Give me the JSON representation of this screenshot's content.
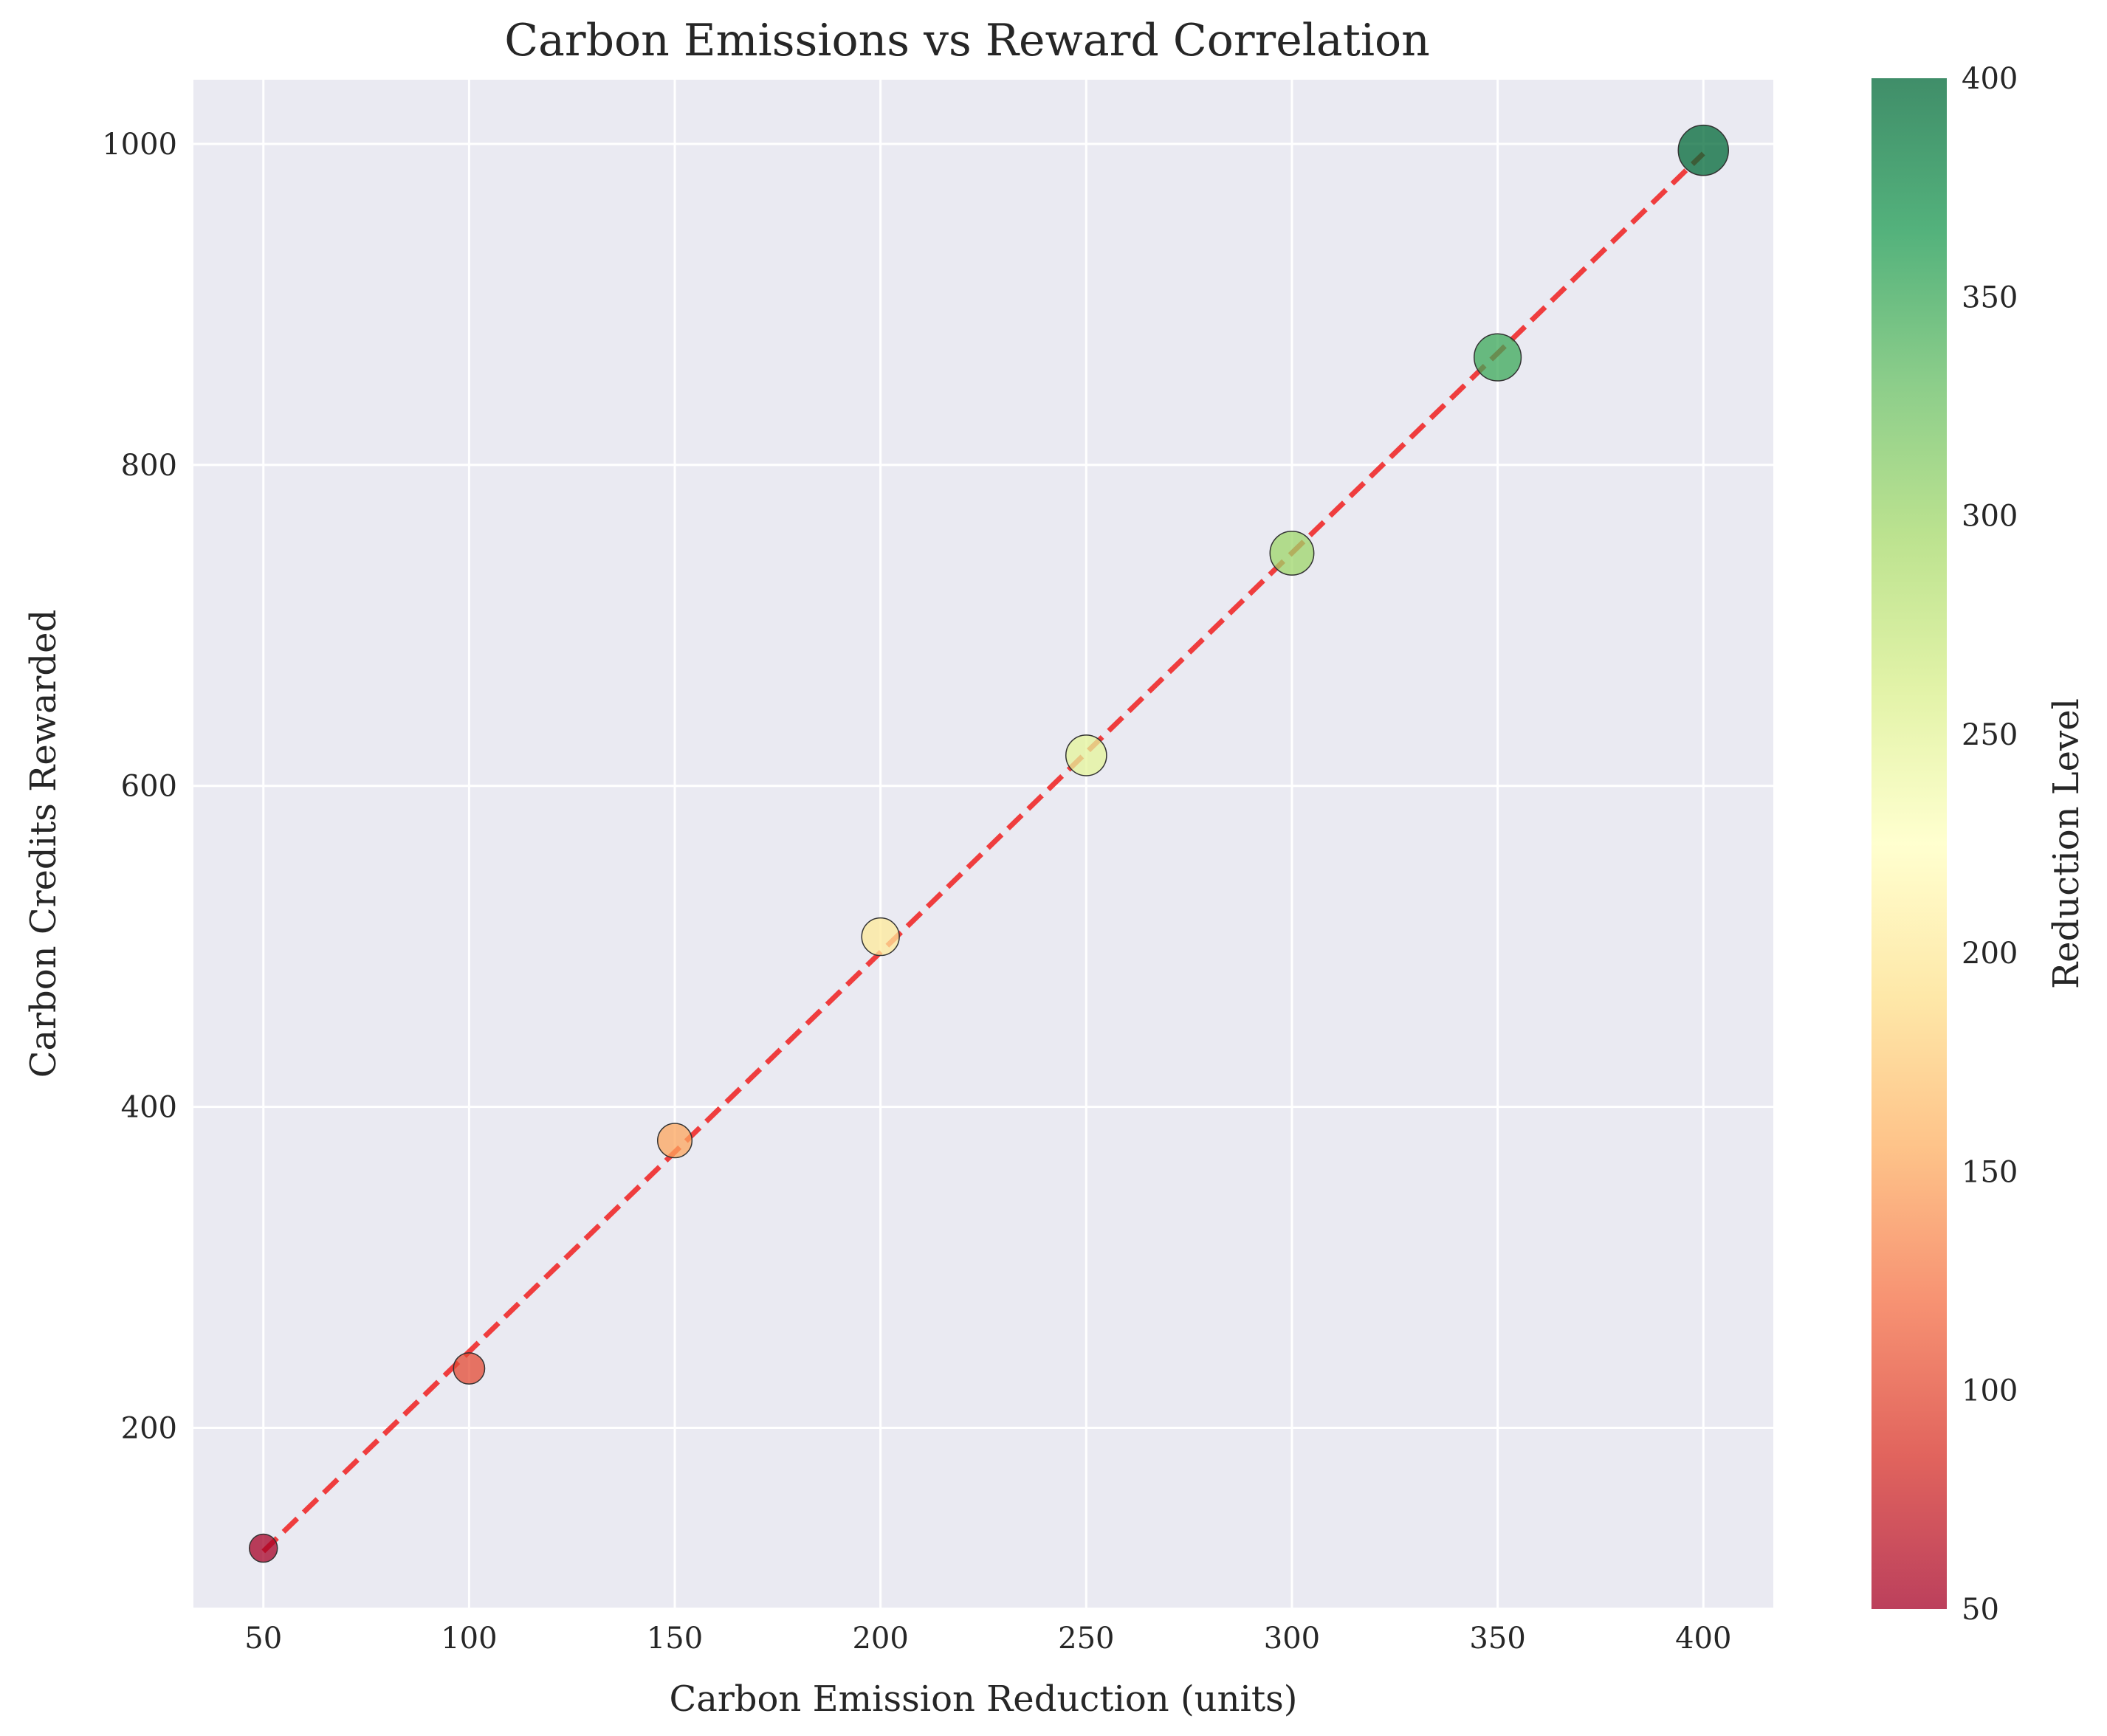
{
  "chart_data": {
    "type": "scatter",
    "title": "Carbon Emissions vs Reward Correlation",
    "xlabel": "Carbon Emission Reduction (units)",
    "ylabel": "Carbon Credits Rewarded",
    "xlim": [
      33,
      417
    ],
    "ylim": [
      88,
      1040
    ],
    "xticks": [
      50,
      100,
      150,
      200,
      250,
      300,
      350,
      400
    ],
    "yticks": [
      200,
      400,
      600,
      800,
      1000
    ],
    "grid": true,
    "points": {
      "x": [
        50,
        100,
        150,
        200,
        250,
        300,
        350,
        400
      ],
      "y": [
        125,
        237,
        379,
        506,
        619,
        745,
        867,
        996
      ],
      "color_value": [
        50,
        100,
        150,
        200,
        250,
        300,
        350,
        400
      ]
    },
    "trend_line": {
      "style": "dashed",
      "color": "#f02a2a",
      "x": [
        50,
        400
      ],
      "y": [
        123,
        994
      ]
    },
    "colorbar": {
      "label": "Reduction Level",
      "range": [
        50,
        400
      ],
      "ticks": [
        50,
        100,
        150,
        200,
        250,
        300,
        350,
        400
      ],
      "colormap": "RdYlGn"
    },
    "colors": {
      "plot_background": "#eaeaf2",
      "grid": "#ffffff",
      "marker_edge": "#333333"
    }
  }
}
